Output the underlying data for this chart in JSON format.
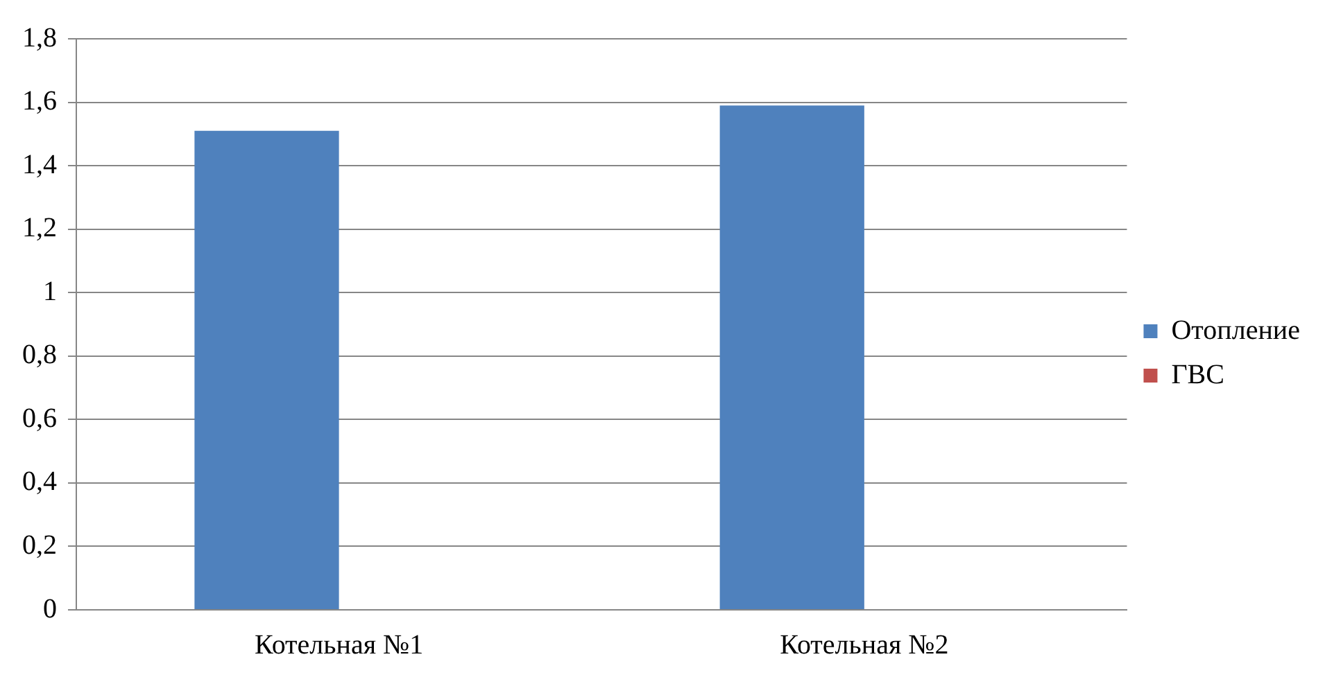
{
  "chart_data": {
    "type": "bar",
    "categories": [
      "Котельная №1",
      "Котельная №2"
    ],
    "series": [
      {
        "name": "Отопление",
        "color": "#4f81bd",
        "values": [
          1.51,
          1.59
        ]
      },
      {
        "name": "ГВС",
        "color": "#c0504d",
        "values": [
          0,
          0
        ]
      }
    ],
    "ylim": [
      0,
      1.8
    ],
    "yticks": [
      {
        "value": 0,
        "label": "0"
      },
      {
        "value": 0.2,
        "label": "0,2"
      },
      {
        "value": 0.4,
        "label": "0,4"
      },
      {
        "value": 0.6,
        "label": "0,6"
      },
      {
        "value": 0.8,
        "label": "0,8"
      },
      {
        "value": 1,
        "label": "1"
      },
      {
        "value": 1.2,
        "label": "1,2"
      },
      {
        "value": 1.4,
        "label": "1,4"
      },
      {
        "value": 1.6,
        "label": "1,6"
      },
      {
        "value": 1.8,
        "label": "1,8"
      }
    ],
    "grid": "y",
    "legend": "right"
  }
}
